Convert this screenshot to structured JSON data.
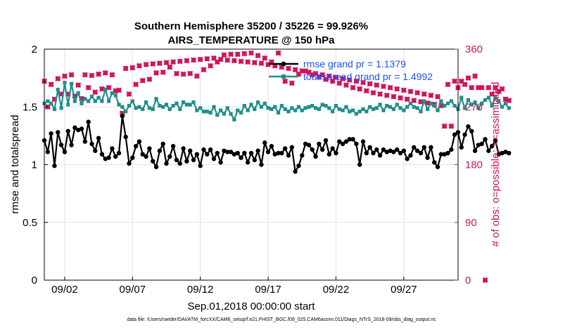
{
  "chart_data": {
    "type": "line",
    "title": "Southern Hemisphere 35200 / 35226 = 99.926%",
    "subtitle": "AIRS_TEMPERATURE @ 150 hPa",
    "xlabel": "Sep.01,2018 00:00:00 start",
    "ylabel": "rmse and totalspread",
    "y2label": "# of obs: o=possible; ×=assimilated",
    "footer": "data file: /Users/raeder/DAI/ATM_forcXX/CAM6_setup/f.e21.FHIST_BGC.f09_025.CAM6assim.011/Diags_NTrS_2018-09/obs_diag_output.nc",
    "x_range": [
      0.5,
      31
    ],
    "xticks": [
      2,
      7,
      12,
      17,
      22,
      27
    ],
    "xtick_labels": [
      "09/02",
      "09/07",
      "09/12",
      "09/17",
      "09/22",
      "09/27"
    ],
    "ylim": [
      0,
      2
    ],
    "yticks": [
      0,
      0.5,
      1,
      1.5,
      2
    ],
    "ytick_labels": [
      "0",
      "0.5",
      "1",
      "1.5",
      "2"
    ],
    "y2lim": [
      0,
      360
    ],
    "y2ticks": [
      0,
      90,
      180,
      270,
      360
    ],
    "y2tick_labels": [
      "0",
      "90",
      "180",
      "270",
      "360"
    ],
    "grid": true,
    "legend_position": "top-right",
    "series": [
      {
        "name": "rmse grand pr = 1.1379",
        "color": "#000000",
        "axis": "left",
        "x_start": 0.5,
        "x_step": 0.25,
        "values": [
          1.21,
          1.11,
          1.27,
          0.99,
          1.28,
          1.17,
          1.11,
          1.29,
          1.17,
          1.32,
          1.3,
          1.31,
          1.2,
          1.37,
          1.18,
          1.12,
          1.23,
          1.09,
          1.05,
          1.06,
          1.14,
          1.07,
          1.1,
          1.42,
          1.24,
          1.01,
          1.06,
          1.16,
          1.2,
          1.09,
          1.07,
          1.14,
          1.03,
          0.98,
          1.12,
          1.18,
          1.01,
          1.07,
          1.16,
          1.04,
          1.01,
          1.14,
          1.03,
          1.12,
          1.04,
          1.09,
          0.99,
          1.13,
          1.09,
          1.13,
          1.05,
          1.1,
          1.02,
          1.12,
          1.11,
          1.11,
          1.09,
          1.1,
          1.06,
          1.1,
          1.02,
          1.1,
          1.04,
          1.12,
          1.0,
          1.19,
          1.11,
          1.16,
          1.09,
          1.1,
          1.1,
          1.14,
          1.08,
          1.15,
          0.94,
          0.99,
          1.08,
          1.18,
          1.17,
          1.13,
          1.07,
          1.18,
          1.13,
          1.21,
          1.09,
          1.14,
          1.1,
          1.2,
          1.18,
          1.2,
          1.22,
          1.22,
          1.18,
          1.0,
          1.2,
          1.1,
          1.15,
          1.1,
          1.13,
          1.08,
          1.13,
          1.11,
          1.12,
          1.11,
          1.13,
          1.1,
          1.12,
          1.05,
          1.08,
          1.15,
          1.12,
          1.1,
          1.15,
          1.06,
          1.15,
          1.02,
          0.98,
          1.09,
          1.09,
          1.1,
          1.13,
          1.26,
          1.28,
          1.15,
          1.26,
          1.33,
          1.29,
          1.12,
          1.17,
          1.18,
          1.22,
          1.12,
          1.16,
          1.21,
          1.09,
          1.1,
          1.11,
          1.1
        ]
      },
      {
        "name": "totalspread grand pr = 1.4992",
        "color": "#1f8f8a",
        "axis": "left",
        "x_start": 0.5,
        "x_step": 0.25,
        "values": [
          1.53,
          1.55,
          1.53,
          1.48,
          1.65,
          1.49,
          1.71,
          1.52,
          1.7,
          1.55,
          1.62,
          1.53,
          1.57,
          1.55,
          1.59,
          1.55,
          1.58,
          1.55,
          1.65,
          1.55,
          1.62,
          1.6,
          1.52,
          1.5,
          1.46,
          1.51,
          1.55,
          1.49,
          1.5,
          1.48,
          1.54,
          1.49,
          1.48,
          1.57,
          1.51,
          1.5,
          1.52,
          1.48,
          1.51,
          1.53,
          1.48,
          1.54,
          1.52,
          1.52,
          1.54,
          1.47,
          1.49,
          1.46,
          1.46,
          1.45,
          1.5,
          1.43,
          1.47,
          1.44,
          1.49,
          1.44,
          1.39,
          1.47,
          1.45,
          1.51,
          1.47,
          1.52,
          1.48,
          1.54,
          1.5,
          1.53,
          1.49,
          1.48,
          1.5,
          1.45,
          1.51,
          1.48,
          1.46,
          1.49,
          1.47,
          1.5,
          1.47,
          1.49,
          1.5,
          1.51,
          1.49,
          1.48,
          1.52,
          1.51,
          1.49,
          1.46,
          1.51,
          1.48,
          1.47,
          1.5,
          1.46,
          1.47,
          1.44,
          1.46,
          1.48,
          1.46,
          1.5,
          1.48,
          1.49,
          1.52,
          1.47,
          1.51,
          1.5,
          1.48,
          1.52,
          1.49,
          1.47,
          1.5,
          1.53,
          1.5,
          1.49,
          1.46,
          1.55,
          1.48,
          1.53,
          1.51,
          1.47,
          1.55,
          1.51,
          1.53,
          1.55,
          1.51,
          1.48,
          1.58,
          1.49,
          1.56,
          1.52,
          1.54,
          1.49,
          1.53,
          1.56,
          1.58,
          1.51,
          1.58,
          1.55,
          1.5,
          1.53,
          1.49
        ]
      },
      {
        "name": "# of obs possible",
        "color": "#d0145a",
        "axis": "right",
        "marker": "o",
        "x_start": 0.5,
        "x_step": 0.25,
        "values": [
          310,
          270,
          305,
          282,
          314,
          290,
          318,
          290,
          320,
          287,
          304,
          283,
          320,
          300,
          319,
          293,
          321,
          298,
          323,
          300,
          320,
          295,
          296,
          260,
          330,
          290,
          331,
          305,
          334,
          311,
          336,
          313,
          337,
          323,
          338,
          324,
          339,
          332,
          340,
          322,
          341,
          321,
          342,
          322,
          343,
          318,
          344,
          328,
          345,
          334,
          346,
          340,
          344,
          351,
          343,
          352,
          342,
          352,
          341,
          353,
          340,
          354,
          339,
          350,
          338,
          346,
          336,
          340,
          334,
          354,
          332,
          310,
          330,
          307,
          328,
          321,
          326,
          326,
          324,
          320,
          322,
          317,
          320,
          313,
          318,
          310,
          316,
          307,
          314,
          304,
          312,
          300,
          310,
          298,
          308,
          295,
          306,
          292,
          304,
          290,
          302,
          288,
          300,
          286,
          298,
          284,
          296,
          282,
          294,
          280,
          292,
          278,
          290,
          276,
          288,
          274,
          286,
          272,
          240,
          305,
          240,
          310,
          300,
          310,
          305,
          315,
          300,
          318,
          300,
          300,
          0,
          300,
          290,
          300,
          294,
          298,
          282,
          280
        ]
      },
      {
        "name": "# of obs assimilated",
        "color": "#d0145a",
        "axis": "right",
        "marker": "x",
        "x_start": 0.5,
        "x_step": 0.25,
        "values": [
          310,
          270,
          305,
          282,
          314,
          290,
          318,
          290,
          320,
          287,
          304,
          283,
          320,
          300,
          319,
          293,
          321,
          298,
          323,
          300,
          320,
          295,
          296,
          260,
          330,
          290,
          331,
          305,
          334,
          311,
          336,
          313,
          337,
          323,
          338,
          324,
          339,
          332,
          340,
          322,
          341,
          321,
          342,
          322,
          343,
          318,
          344,
          328,
          345,
          334,
          346,
          340,
          344,
          351,
          343,
          352,
          342,
          352,
          341,
          353,
          340,
          354,
          339,
          350,
          338,
          346,
          336,
          340,
          334,
          354,
          332,
          310,
          330,
          307,
          328,
          321,
          326,
          326,
          324,
          320,
          322,
          317,
          320,
          313,
          318,
          310,
          316,
          307,
          314,
          304,
          312,
          300,
          310,
          298,
          308,
          295,
          306,
          292,
          304,
          290,
          302,
          288,
          300,
          286,
          298,
          284,
          296,
          282,
          294,
          280,
          292,
          278,
          290,
          276,
          288,
          274,
          286,
          272,
          240,
          305,
          240,
          310,
          300,
          310,
          305,
          315,
          300,
          318,
          300,
          300,
          0,
          300,
          290,
          300,
          294,
          298,
          282,
          280
        ]
      }
    ]
  }
}
